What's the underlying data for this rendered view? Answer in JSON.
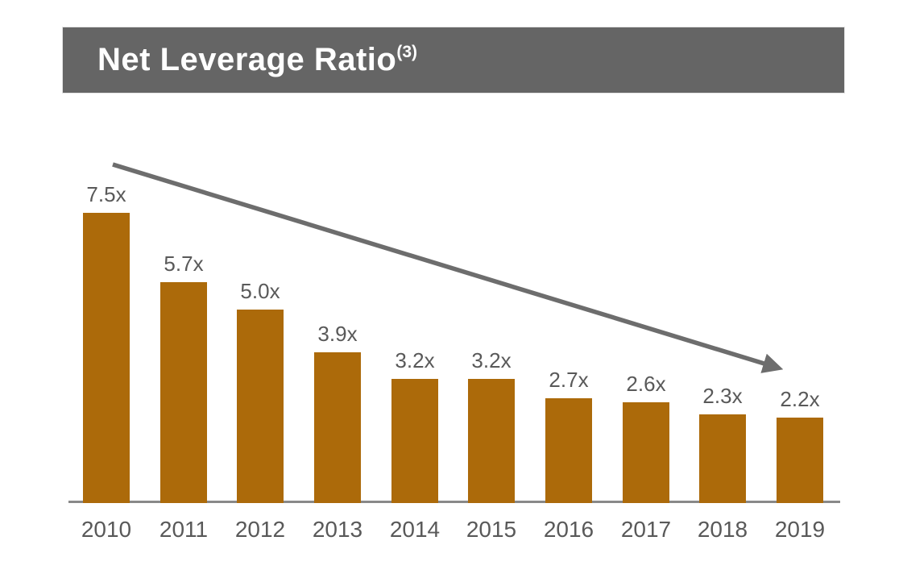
{
  "header": {
    "title": "Net Leverage Ratio",
    "superscript": "(3)",
    "bg_color": "#656565",
    "title_color": "#FFFFFF"
  },
  "chart_data": {
    "type": "bar",
    "title": "Net Leverage Ratio(3)",
    "categories": [
      "2010",
      "2011",
      "2012",
      "2013",
      "2014",
      "2015",
      "2016",
      "2017",
      "2018",
      "2019"
    ],
    "values": [
      7.5,
      5.7,
      5.0,
      3.9,
      3.2,
      3.2,
      2.7,
      2.6,
      2.3,
      2.2
    ],
    "data_labels": [
      "7.5x",
      "5.7x",
      "5.0x",
      "3.9x",
      "3.2x",
      "3.2x",
      "2.7x",
      "2.6x",
      "2.3x",
      "2.2x"
    ],
    "xlabel": "",
    "ylabel": "",
    "ylim": [
      0,
      8
    ],
    "grid": false,
    "legend": false,
    "bar_color": "#AC6A0A",
    "label_color": "#595959",
    "axis_color": "#898989",
    "annotations": [
      {
        "type": "trend-arrow",
        "description": "downward trend arrow from top-left to lower-right",
        "color": "#6D6D6D"
      }
    ]
  }
}
